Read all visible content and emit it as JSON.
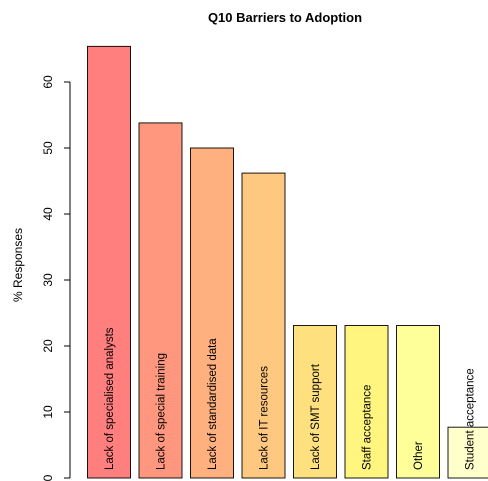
{
  "chart_data": {
    "type": "bar",
    "title": "Q10 Barriers to Adoption",
    "xlabel": "",
    "ylabel": "% Responses",
    "ylim": [
      0,
      65
    ],
    "yticks": [
      0,
      10,
      20,
      30,
      40,
      50,
      60
    ],
    "grid": false,
    "legend": "none",
    "categories": [
      "Lack of specialised analysts",
      "Lack of special training",
      "Lack of standardised data",
      "Lack of IT resources",
      "Lack of SMT support",
      "Staff acceptance",
      "Other",
      "Student acceptance"
    ],
    "values": [
      65.4,
      53.8,
      50.0,
      46.2,
      23.1,
      23.1,
      23.1,
      7.7
    ],
    "colors": [
      "#ff7f7f",
      "#ff977f",
      "#ffb07f",
      "#ffc880",
      "#ffe07f",
      "#fff57f",
      "#ffff99",
      "#ffffcc"
    ]
  }
}
